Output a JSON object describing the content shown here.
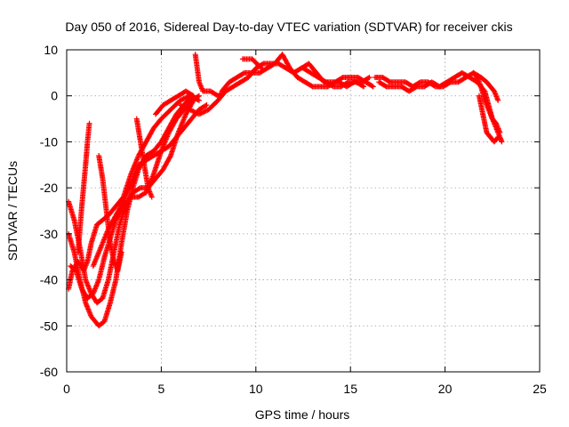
{
  "chart_data": {
    "type": "scatter",
    "title": "Day 050 of 2016, Sidereal Day-to-day VTEC variation (SDTVAR) for receiver ckis",
    "xlabel": "GPS time / hours",
    "ylabel": "SDTVAR / TECUs",
    "xlim": [
      0,
      25
    ],
    "ylim": [
      -60,
      10
    ],
    "xticks": [
      0,
      5,
      10,
      15,
      20,
      25
    ],
    "yticks": [
      -60,
      -50,
      -40,
      -30,
      -20,
      -10,
      0,
      10
    ],
    "grid": true,
    "legend": "none",
    "marker": "plus",
    "color": "#ff0000",
    "series": [
      {
        "values": [
          [
            0.1,
            -42
          ],
          [
            0.3,
            -38
          ],
          [
            0.6,
            -36
          ],
          [
            0.9,
            -38
          ],
          [
            1.1,
            -36
          ],
          [
            1.3,
            -32
          ],
          [
            1.6,
            -28
          ],
          [
            1.9,
            -27
          ],
          [
            2.2,
            -26
          ],
          [
            2.6,
            -24
          ],
          [
            3.0,
            -22
          ],
          [
            3.4,
            -17
          ],
          [
            3.8,
            -13
          ],
          [
            4.2,
            -10
          ],
          [
            4.6,
            -7
          ],
          [
            5.0,
            -5
          ],
          [
            5.5,
            -3
          ],
          [
            6.0,
            -1
          ],
          [
            6.5,
            0
          ],
          [
            7.0,
            -1
          ]
        ]
      },
      {
        "values": [
          [
            0.1,
            -30
          ],
          [
            0.4,
            -34
          ],
          [
            0.7,
            -40
          ],
          [
            1.0,
            -45
          ],
          [
            1.3,
            -48
          ],
          [
            1.7,
            -50
          ],
          [
            2.0,
            -49
          ],
          [
            2.3,
            -45
          ],
          [
            2.6,
            -40
          ],
          [
            2.9,
            -32
          ],
          [
            3.2,
            -25
          ],
          [
            3.5,
            -20
          ],
          [
            3.8,
            -16
          ],
          [
            4.2,
            -13
          ],
          [
            4.6,
            -12
          ],
          [
            5.0,
            -10
          ],
          [
            5.4,
            -7
          ],
          [
            5.8,
            -4
          ],
          [
            6.2,
            -2
          ],
          [
            6.6,
            0
          ]
        ]
      },
      {
        "values": [
          [
            0.1,
            -23
          ],
          [
            0.4,
            -27
          ],
          [
            0.7,
            -33
          ],
          [
            1.0,
            -40
          ],
          [
            1.3,
            -43
          ],
          [
            1.6,
            -45
          ],
          [
            1.9,
            -44
          ],
          [
            2.2,
            -40
          ],
          [
            2.5,
            -34
          ],
          [
            2.8,
            -28
          ],
          [
            3.1,
            -24
          ],
          [
            3.5,
            -21
          ],
          [
            3.9,
            -20
          ],
          [
            4.3,
            -20
          ],
          [
            4.7,
            -18
          ],
          [
            5.1,
            -16
          ],
          [
            5.5,
            -13
          ],
          [
            5.9,
            -8
          ],
          [
            6.3,
            -4
          ],
          [
            6.7,
            -1
          ]
        ]
      },
      {
        "values": [
          [
            0.2,
            -37
          ],
          [
            0.5,
            -38
          ],
          [
            0.8,
            -42
          ],
          [
            1.1,
            -44
          ],
          [
            1.4,
            -43
          ],
          [
            1.7,
            -40
          ],
          [
            2.0,
            -35
          ],
          [
            2.3,
            -31
          ],
          [
            2.6,
            -27
          ],
          [
            3.0,
            -24
          ],
          [
            3.4,
            -22
          ],
          [
            3.8,
            -22
          ],
          [
            4.2,
            -21
          ],
          [
            4.6,
            -17
          ],
          [
            5.0,
            -12
          ],
          [
            5.4,
            -8
          ],
          [
            5.8,
            -5
          ],
          [
            6.2,
            -3
          ],
          [
            6.6,
            -1
          ],
          [
            7.0,
            0
          ]
        ]
      },
      {
        "values": [
          [
            0.6,
            -34
          ],
          [
            0.8,
            -24
          ],
          [
            1.0,
            -15
          ],
          [
            1.1,
            -10
          ],
          [
            1.2,
            -6
          ]
        ]
      },
      {
        "values": [
          [
            1.7,
            -13
          ],
          [
            1.9,
            -18
          ],
          [
            2.1,
            -25
          ],
          [
            2.3,
            -32
          ],
          [
            2.5,
            -36
          ],
          [
            2.7,
            -38
          ],
          [
            2.9,
            -34
          ]
        ]
      },
      {
        "values": [
          [
            3.7,
            -5
          ],
          [
            3.9,
            -10
          ],
          [
            4.1,
            -15
          ],
          [
            4.3,
            -20
          ],
          [
            4.5,
            -22
          ]
        ]
      },
      {
        "values": [
          [
            1.4,
            -37
          ],
          [
            1.8,
            -33
          ],
          [
            2.2,
            -29
          ],
          [
            2.6,
            -26
          ],
          [
            3.0,
            -23
          ],
          [
            3.4,
            -19
          ],
          [
            3.8,
            -15
          ],
          [
            4.2,
            -14
          ],
          [
            4.6,
            -13
          ],
          [
            5.0,
            -12
          ],
          [
            5.4,
            -11
          ],
          [
            5.8,
            -9
          ],
          [
            6.2,
            -7
          ],
          [
            6.6,
            -5
          ],
          [
            7.0,
            -3
          ],
          [
            7.4,
            -2
          ]
        ]
      },
      {
        "values": [
          [
            4.7,
            -4
          ],
          [
            5.1,
            -2
          ],
          [
            5.5,
            -1
          ],
          [
            5.9,
            0
          ],
          [
            6.3,
            1
          ],
          [
            6.7,
            0
          ]
        ]
      },
      {
        "values": [
          [
            6.8,
            9
          ],
          [
            6.9,
            6
          ],
          [
            7.0,
            3
          ],
          [
            7.2,
            1
          ],
          [
            7.6,
            1
          ],
          [
            8.0,
            0
          ],
          [
            8.4,
            1
          ]
        ]
      },
      {
        "values": [
          [
            6.0,
            -2
          ],
          [
            6.5,
            -3
          ],
          [
            7.0,
            -4
          ],
          [
            7.5,
            -3
          ],
          [
            8.0,
            -1
          ],
          [
            8.4,
            1
          ],
          [
            8.8,
            2
          ],
          [
            9.2,
            3
          ],
          [
            9.6,
            4
          ],
          [
            10.0,
            6
          ],
          [
            10.4,
            7
          ],
          [
            10.8,
            7
          ],
          [
            11.2,
            7
          ],
          [
            11.6,
            6
          ],
          [
            12.0,
            5
          ],
          [
            12.4,
            6
          ],
          [
            12.8,
            7
          ],
          [
            13.2,
            5
          ],
          [
            13.6,
            3
          ],
          [
            14.0,
            3
          ],
          [
            14.4,
            3
          ],
          [
            14.8,
            2
          ],
          [
            15.2,
            3
          ],
          [
            15.6,
            3
          ],
          [
            16.0,
            4
          ]
        ]
      },
      {
        "values": [
          [
            8.2,
            1
          ],
          [
            8.6,
            3
          ],
          [
            9.0,
            4
          ],
          [
            9.4,
            5
          ],
          [
            9.8,
            5
          ],
          [
            10.2,
            5
          ],
          [
            10.6,
            6
          ],
          [
            11.0,
            7
          ],
          [
            11.4,
            9
          ],
          [
            11.8,
            6
          ],
          [
            12.2,
            4
          ],
          [
            12.6,
            3
          ],
          [
            13.0,
            2
          ],
          [
            13.4,
            2
          ],
          [
            13.8,
            2
          ],
          [
            14.2,
            3
          ],
          [
            14.6,
            4
          ],
          [
            15.0,
            4
          ],
          [
            15.4,
            4
          ],
          [
            15.8,
            3
          ],
          [
            16.2,
            2
          ]
        ]
      },
      {
        "values": [
          [
            12.5,
            6
          ],
          [
            12.9,
            5
          ],
          [
            13.3,
            4
          ],
          [
            13.7,
            3
          ],
          [
            14.1,
            2
          ],
          [
            14.5,
            2
          ],
          [
            14.9,
            3
          ],
          [
            15.3,
            3
          ],
          [
            15.7,
            2
          ]
        ]
      },
      {
        "values": [
          [
            9.3,
            8
          ],
          [
            9.8,
            8
          ],
          [
            10.3,
            6
          ]
        ]
      },
      {
        "values": [
          [
            16.3,
            4
          ],
          [
            16.7,
            4
          ],
          [
            17.1,
            3
          ],
          [
            17.5,
            3
          ],
          [
            17.9,
            3
          ],
          [
            18.3,
            2
          ],
          [
            18.7,
            3
          ],
          [
            19.1,
            3
          ],
          [
            19.5,
            2
          ],
          [
            19.9,
            2
          ],
          [
            20.3,
            3
          ],
          [
            20.7,
            3
          ],
          [
            21.1,
            4
          ],
          [
            21.5,
            5
          ],
          [
            21.9,
            4
          ],
          [
            22.2,
            3
          ],
          [
            22.4,
            2
          ],
          [
            22.6,
            1
          ],
          [
            22.8,
            -1
          ]
        ]
      },
      {
        "values": [
          [
            16.5,
            3
          ],
          [
            16.9,
            2
          ],
          [
            17.3,
            2
          ],
          [
            17.7,
            2
          ],
          [
            18.1,
            1
          ],
          [
            18.5,
            2
          ],
          [
            18.9,
            2
          ],
          [
            19.3,
            3
          ],
          [
            19.7,
            2
          ],
          [
            20.1,
            3
          ],
          [
            20.5,
            4
          ],
          [
            20.9,
            5
          ],
          [
            21.3,
            4
          ],
          [
            21.7,
            3
          ],
          [
            22.1,
            1
          ],
          [
            22.3,
            -2
          ],
          [
            22.5,
            -5
          ],
          [
            22.7,
            -6
          ],
          [
            22.9,
            -8
          ]
        ]
      },
      {
        "values": [
          [
            21.8,
            0
          ],
          [
            21.9,
            -2
          ],
          [
            22.0,
            -4
          ],
          [
            22.1,
            -6
          ],
          [
            22.2,
            -8
          ],
          [
            22.4,
            -9
          ],
          [
            22.6,
            -10
          ],
          [
            22.8,
            -9
          ]
        ]
      },
      {
        "values": [
          [
            21.5,
            5
          ],
          [
            21.7,
            4
          ],
          [
            21.9,
            2
          ],
          [
            22.1,
            -1
          ],
          [
            22.3,
            -3
          ],
          [
            22.5,
            -5
          ],
          [
            22.7,
            -7
          ],
          [
            22.9,
            -9
          ],
          [
            23.0,
            -10
          ]
        ]
      }
    ]
  }
}
